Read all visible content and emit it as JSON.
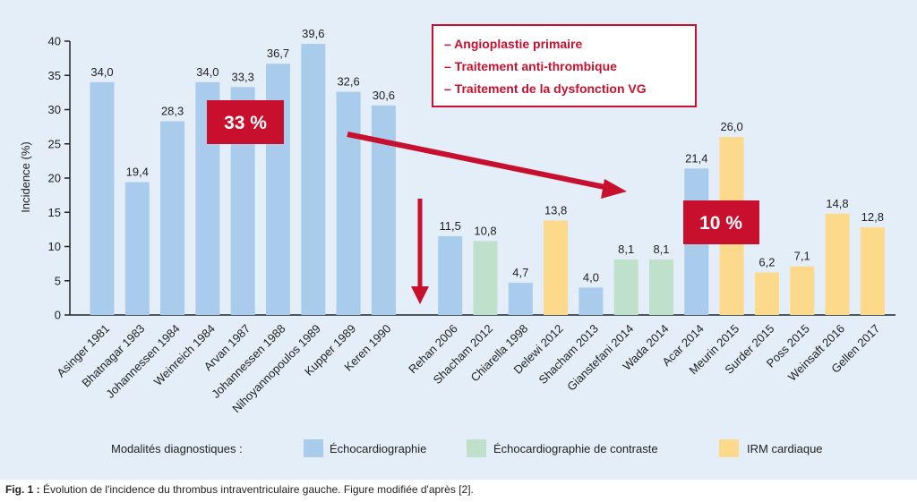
{
  "caption": {
    "label": "Fig. 1 :",
    "text": "Évolution de l'incidence du thrombus intraventriculaire gauche. Figure modifiée d'après [2]."
  },
  "callout": {
    "lines": [
      "– Angioplastie primaire",
      "– Traitement anti-thrombique",
      "– Traitement de la dysfonction VG"
    ]
  },
  "badges": {
    "left": "33 %",
    "right": "10 %"
  },
  "legend": {
    "title": "Modalités diagnostiques :",
    "items": [
      {
        "label": "Échocardiographie",
        "color": "#a9cbec"
      },
      {
        "label": "Échocardiographie de contraste",
        "color": "#bfe0cb"
      },
      {
        "label": "IRM cardiaque",
        "color": "#fdd98b"
      }
    ]
  },
  "colors": {
    "accent": "#c8102e"
  },
  "chart_data": {
    "type": "bar",
    "ylabel": "Incidence (%)",
    "ylim": [
      0,
      40
    ],
    "yticks": [
      0,
      5,
      10,
      15,
      20,
      25,
      30,
      35,
      40
    ],
    "categories": [
      "Asinger 1981",
      "Bhatnagar 1983",
      "Johannessen 1984",
      "Weinreich 1984",
      "Arvan 1987",
      "Johannessen 1988",
      "Nihoyannopoulos 1989",
      "Kupper 1989",
      "Keren 1990",
      "Rehan 2006",
      "Shacham 2012",
      "Chiarella 1998",
      "Delewi 2012",
      "Shacham 2013",
      "Gianstefani 2014",
      "Wada 2014",
      "Acar 2014",
      "Meurin 2015",
      "Surder 2015",
      "Poss 2015",
      "Weinsaft 2016",
      "Gellen 2017"
    ],
    "values": [
      34.0,
      19.4,
      28.3,
      34.0,
      33.3,
      36.7,
      39.6,
      32.6,
      30.6,
      11.5,
      10.8,
      4.7,
      13.8,
      4.0,
      8.1,
      8.1,
      21.4,
      26.0,
      6.2,
      7.1,
      14.8,
      12.8
    ],
    "value_labels": [
      "34,0",
      "19,4",
      "28,3",
      "34,0",
      "33,3",
      "36,7",
      "39,6",
      "32,6",
      "30,6",
      "11,5",
      "10,8",
      "4,7",
      "13,8",
      "4,0",
      "8,1",
      "8,1",
      "21,4",
      "26,0",
      "6,2",
      "7,1",
      "14,8",
      "12,8"
    ],
    "modality": [
      "Échocardiographie",
      "Échocardiographie",
      "Échocardiographie",
      "Échocardiographie",
      "Échocardiographie",
      "Échocardiographie",
      "Échocardiographie",
      "Échocardiographie",
      "Échocardiographie",
      "Échocardiographie",
      "Échocardiographie de contraste",
      "Échocardiographie",
      "IRM cardiaque",
      "Échocardiographie",
      "Échocardiographie de contraste",
      "Échocardiographie de contraste",
      "Échocardiographie",
      "IRM cardiaque",
      "IRM cardiaque",
      "IRM cardiaque",
      "IRM cardiaque",
      "IRM cardiaque"
    ]
  }
}
